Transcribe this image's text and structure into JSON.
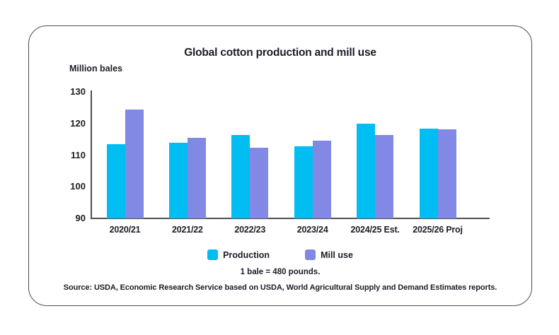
{
  "card": {
    "title": "Global cotton production and mill use",
    "axis_unit_label": "Million bales",
    "note": "1 bale = 480 pounds.",
    "source": "Source: USDA, Economic Research Service based on USDA, World Agricultural Supply and Demand Estimates reports."
  },
  "colors": {
    "production": "#00bef2",
    "mill_use": "#8289e4",
    "axis": "#4f4f4f",
    "text": "#1c1c28",
    "card_border": "#4d4d4d"
  },
  "chart_data": {
    "type": "bar",
    "title": "Global cotton production and mill use",
    "xlabel": "",
    "ylabel": "Million bales",
    "categories": [
      "2020/21",
      "2021/22",
      "2022/23",
      "2023/24",
      "2024/25 Est.",
      "2025/26 Proj"
    ],
    "series": [
      {
        "name": "Production",
        "color": "#00bef2",
        "values": [
          113.4,
          114.0,
          116.4,
          112.9,
          119.9,
          118.4
        ]
      },
      {
        "name": "Mill use",
        "color": "#8289e4",
        "values": [
          124.5,
          115.5,
          112.3,
          114.6,
          116.4,
          118.2
        ]
      }
    ],
    "ylim": [
      90,
      130
    ],
    "yticks": [
      130,
      120,
      110,
      100,
      90
    ],
    "grid": false,
    "legend_position": "bottom"
  }
}
